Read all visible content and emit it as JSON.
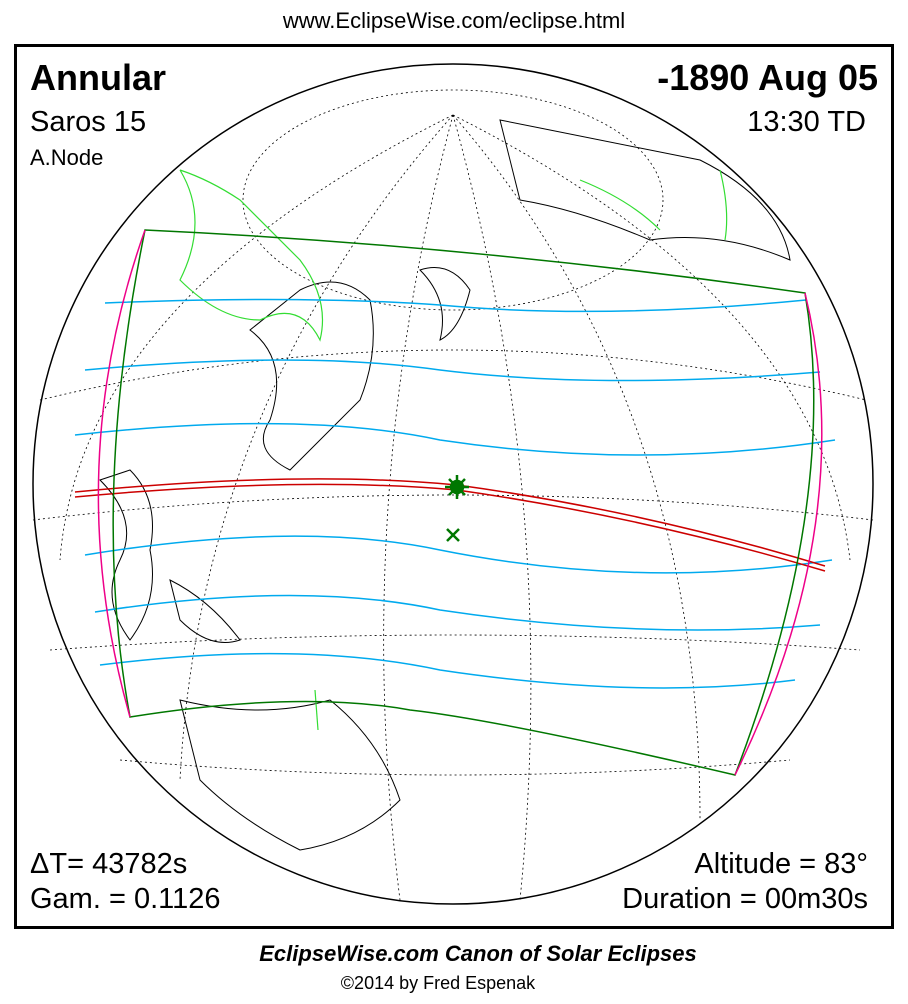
{
  "header": {
    "url": "www.EclipseWise.com/eclipse.html"
  },
  "eclipse": {
    "type": "Annular",
    "date": "-1890 Aug 05",
    "saros": "Saros  15",
    "time": "13:30 TD",
    "node": "A.Node",
    "delta_t": "ΔT=  43782s",
    "gamma": "Gam. = 0.1126",
    "altitude": "Altitude = 83°",
    "duration": "Duration = 00m30s"
  },
  "footer": {
    "title": "EclipseWise.com Canon of Solar Eclipses",
    "credit": "©2014 by Fred Espenak"
  }
}
